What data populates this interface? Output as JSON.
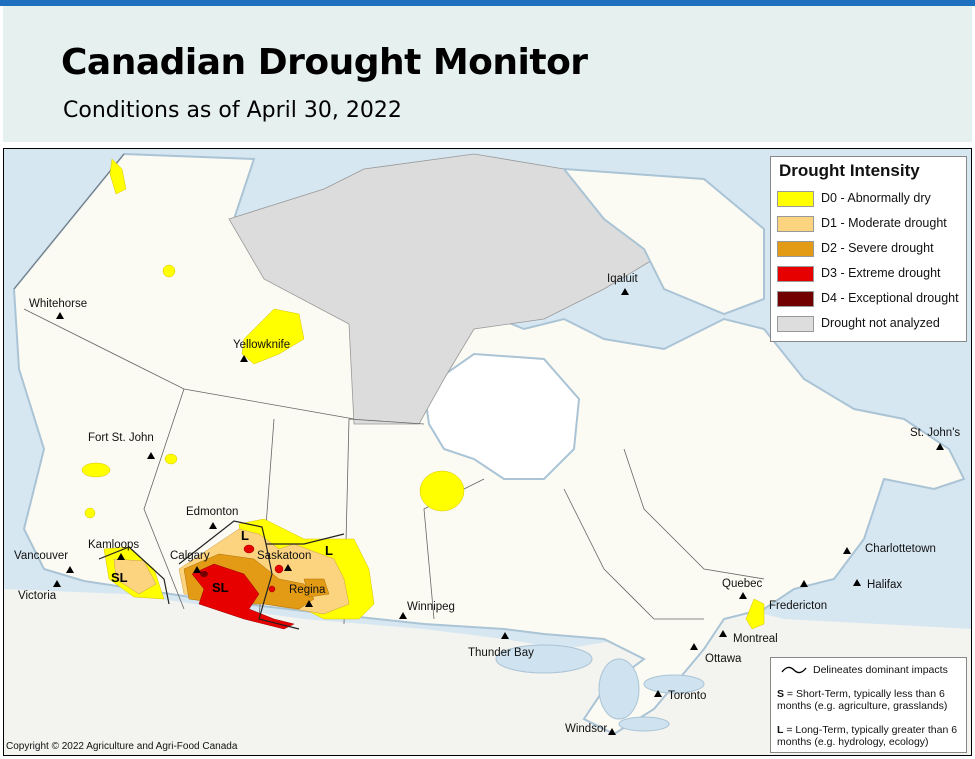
{
  "header": {
    "title": "Canadian Drought Monitor",
    "subtitle": "Conditions as of April 30, 2022"
  },
  "legend": {
    "title": "Drought Intensity",
    "items": [
      {
        "label": "D0 - Abnormally dry",
        "color": "#ffff00"
      },
      {
        "label": "D1 - Moderate drought",
        "color": "#fcd37f"
      },
      {
        "label": "D2 - Severe drought",
        "color": "#e39b16"
      },
      {
        "label": "D3 - Extreme drought",
        "color": "#e60000"
      },
      {
        "label": "D4 - Exceptional drought",
        "color": "#730000"
      },
      {
        "label": "Drought not analyzed",
        "color": "#dddddd"
      }
    ]
  },
  "impacts_legend": {
    "line_label": "Delineates dominant impacts",
    "short_term": {
      "letter": "S",
      "text": " = Short-Term, typically less than 6 months (e.g. agriculture, grasslands)"
    },
    "long_term": {
      "letter": "L",
      "text": " = Long-Term, typically greater than 6 months (e.g. hydrology, ecology)"
    }
  },
  "cities": [
    {
      "name": "Whitehorse"
    },
    {
      "name": "Yellowknife"
    },
    {
      "name": "Iqaluit"
    },
    {
      "name": "Fort St. John"
    },
    {
      "name": "Edmonton"
    },
    {
      "name": "Kamloops"
    },
    {
      "name": "Calgary"
    },
    {
      "name": "Saskatoon"
    },
    {
      "name": "Regina"
    },
    {
      "name": "Vancouver"
    },
    {
      "name": "Victoria"
    },
    {
      "name": "Winnipeg"
    },
    {
      "name": "Thunder Bay"
    },
    {
      "name": "Quebec"
    },
    {
      "name": "Montreal"
    },
    {
      "name": "Ottawa"
    },
    {
      "name": "Toronto"
    },
    {
      "name": "Windsor"
    },
    {
      "name": "Fredericton"
    },
    {
      "name": "Charlottetown"
    },
    {
      "name": "Halifax"
    },
    {
      "name": "St. John's"
    }
  ],
  "impact_labels": {
    "sl_west": "SL",
    "sl_alberta": "SL",
    "l_alberta": "L",
    "l_sask": "L"
  },
  "copyright": "Copyright © 2022 Agriculture and Agri-Food Canada"
}
